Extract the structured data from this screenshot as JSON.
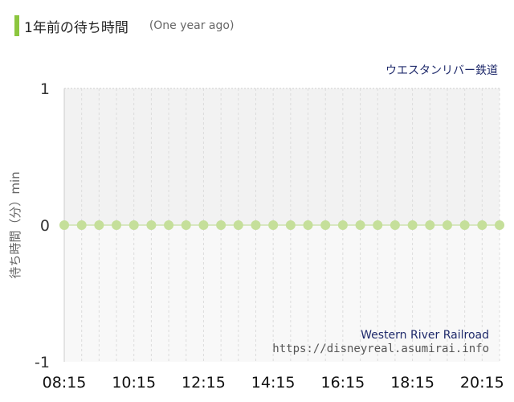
{
  "header": {
    "title": "1年前の待ち時間",
    "subtitle": "(One year ago)",
    "accent_color": "#8cc63f"
  },
  "chart_data": {
    "type": "scatter",
    "attraction_name_jp": "ウエスタンリバー鉄道",
    "attraction_name_en": "Western River Railroad",
    "source_url": "https://disneyreal.asumirai.info",
    "ylabel": "待ち時間（分）min",
    "ylim": [
      -1,
      1
    ],
    "yticks": [
      "1",
      "0",
      "-1"
    ],
    "xlim": [
      "08:15",
      "20:45"
    ],
    "xticks": [
      "08:15",
      "10:15",
      "12:15",
      "14:15",
      "16:15",
      "18:15",
      "20:15"
    ],
    "series": [
      {
        "x": [
          "08:15",
          "08:45",
          "09:15",
          "09:45",
          "10:15",
          "10:45",
          "11:15",
          "11:45",
          "12:15",
          "12:45",
          "13:15",
          "13:45",
          "14:15",
          "14:45",
          "15:15",
          "15:45",
          "16:15",
          "16:45",
          "17:15",
          "17:45",
          "18:15",
          "18:45",
          "19:15",
          "19:45",
          "20:15",
          "20:45"
        ],
        "values": [
          0,
          0,
          0,
          0,
          0,
          0,
          0,
          0,
          0,
          0,
          0,
          0,
          0,
          0,
          0,
          0,
          0,
          0,
          0,
          0,
          0,
          0,
          0,
          0,
          0,
          0
        ],
        "color": "#c5df9a"
      }
    ],
    "plot_bg_upper": "#f2f2f2",
    "plot_bg_lower": "#f8f8f8",
    "grid": true,
    "legend": "none"
  }
}
